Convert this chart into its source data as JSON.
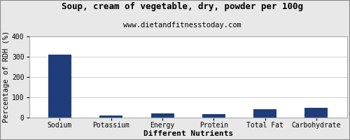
{
  "title": "Soup, cream of vegetable, dry, powder per 100g",
  "subtitle": "www.dietandfitnesstoday.com",
  "xlabel": "Different Nutrients",
  "ylabel": "Percentage of RDH (%)",
  "categories": [
    "Sodium",
    "Potassium",
    "Energy",
    "Protein",
    "Total Fat",
    "Carbohydrate"
  ],
  "values": [
    312,
    8,
    20,
    15,
    40,
    47
  ],
  "bar_color": "#1F3D7A",
  "ylim": [
    0,
    400
  ],
  "yticks": [
    0,
    100,
    200,
    300,
    400
  ],
  "background_color": "#e8e8e8",
  "plot_background": "#ffffff",
  "title_fontsize": 9,
  "subtitle_fontsize": 7.5,
  "axis_label_fontsize": 7.5,
  "tick_fontsize": 7,
  "xlabel_fontsize": 8
}
